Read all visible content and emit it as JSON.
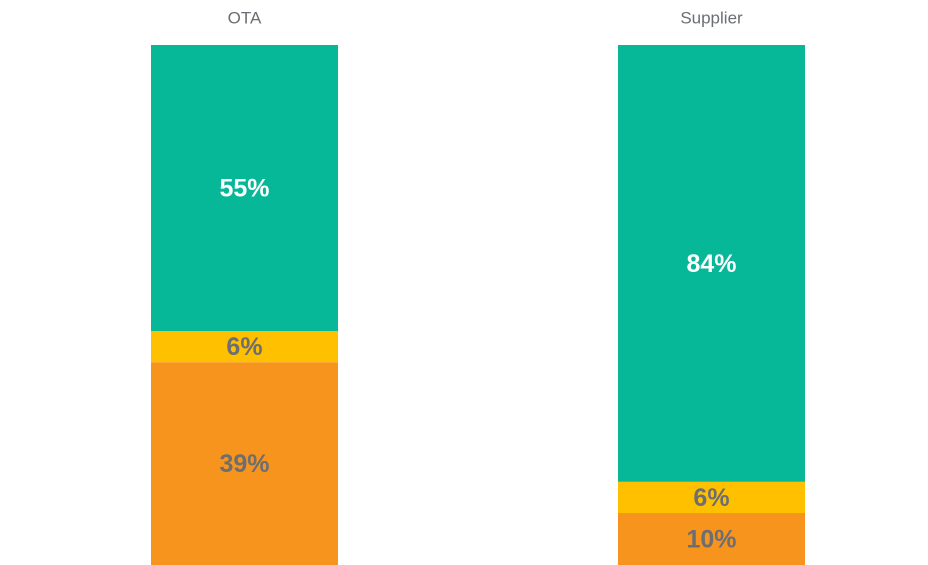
{
  "chart_data": {
    "type": "stacked_bar",
    "categories": [
      "OTA",
      "Supplier"
    ],
    "series": [
      {
        "color": "#f7941d",
        "label_color": "#6d6e71",
        "values": [
          39,
          10
        ],
        "value_labels": [
          "39%",
          "10%"
        ]
      },
      {
        "color": "#ffc000",
        "label_color": "#6d6e71",
        "values": [
          6,
          6
        ],
        "value_labels": [
          "6%",
          "6%"
        ]
      },
      {
        "color": "#06b898",
        "label_color": "#ffffff",
        "values": [
          55,
          84
        ],
        "value_labels": [
          "55%",
          "84%"
        ]
      }
    ],
    "ylim": [
      0,
      100
    ]
  }
}
